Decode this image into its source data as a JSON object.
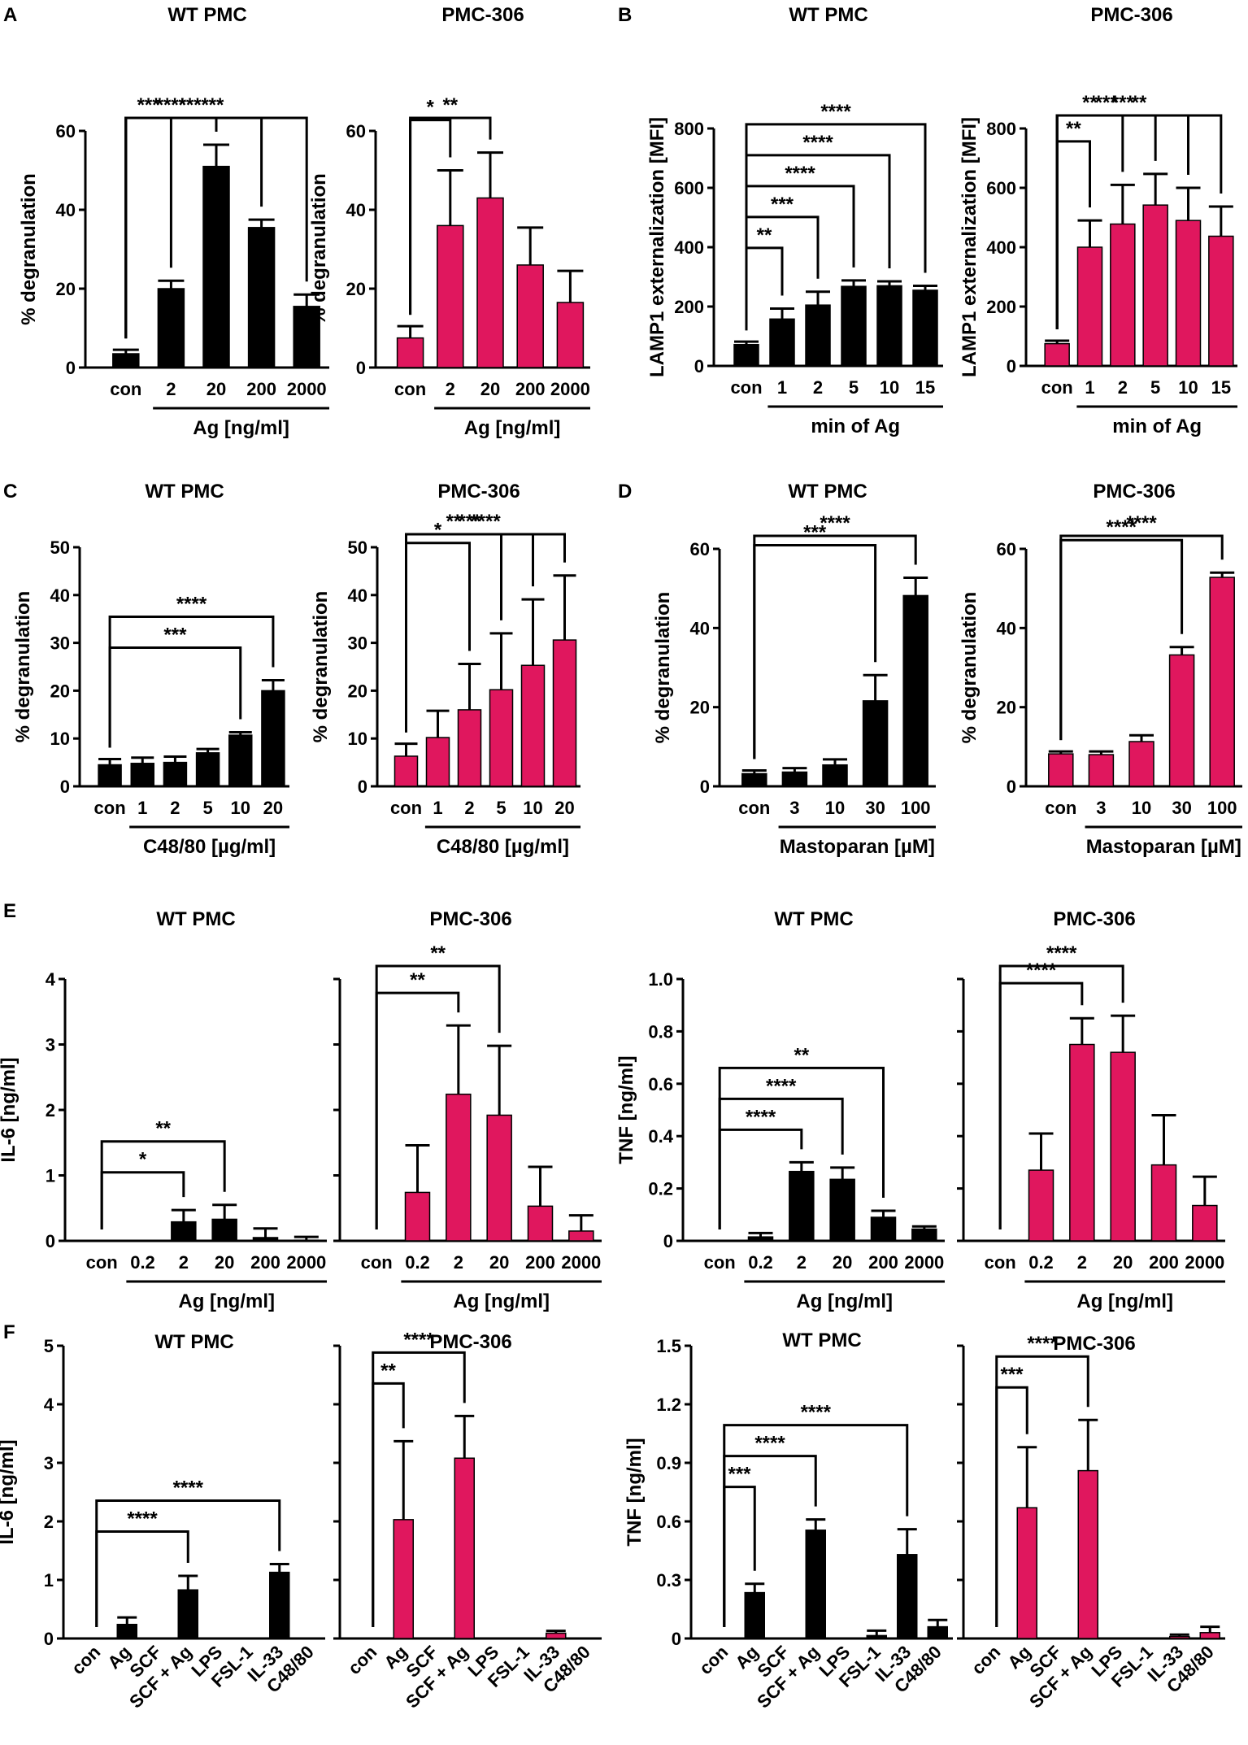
{
  "colors": {
    "wt": "#000000",
    "pmc306": "#e0175e",
    "axis": "#000000"
  },
  "chart_data": [
    {
      "id": "A1",
      "type": "bar",
      "panel_label": "A",
      "title": "WT PMC",
      "ylabel": "% degranulation",
      "xlabel": "Ag [ng/ml]",
      "ylim": [
        0,
        60
      ],
      "yticks": [
        "0",
        "20",
        "40",
        "60"
      ],
      "categories": [
        "con",
        "2",
        "20",
        "200",
        "2000"
      ],
      "values": [
        3.5,
        20,
        51,
        35.5,
        15.5
      ],
      "errors": [
        1,
        2,
        5.5,
        2,
        3
      ],
      "color": "wt",
      "sig": [
        {
          "label": "***",
          "to": 1
        },
        {
          "label": "****",
          "to": 2
        },
        {
          "label": "****",
          "to": 3
        },
        {
          "label": "**",
          "to": 4
        }
      ]
    },
    {
      "id": "A2",
      "type": "bar",
      "title": "PMC-306",
      "ylabel": "% degranulation",
      "xlabel": "Ag [ng/ml]",
      "ylim": [
        0,
        60
      ],
      "yticks": [
        "0",
        "20",
        "40",
        "60"
      ],
      "categories": [
        "con",
        "2",
        "20",
        "200",
        "2000"
      ],
      "values": [
        7.5,
        36,
        43,
        26,
        16.5
      ],
      "errors": [
        3,
        14,
        11.5,
        9.5,
        8
      ],
      "color": "pmc306",
      "sig": [
        {
          "label": "*",
          "to": 1
        },
        {
          "label": "**",
          "to": 2
        }
      ]
    },
    {
      "id": "B1",
      "type": "bar",
      "panel_label": "B",
      "title": "WT PMC",
      "ylabel": "LAMP1 externalization [MFI]",
      "xlabel": "min of Ag",
      "ylim": [
        0,
        800
      ],
      "yticks": [
        "0",
        "200",
        "400",
        "600",
        "800"
      ],
      "categories": [
        "con",
        "1",
        "2",
        "5",
        "10",
        "15"
      ],
      "values": [
        72,
        158,
        205,
        268,
        270,
        255
      ],
      "errors": [
        10,
        35,
        45,
        20,
        15,
        15
      ],
      "color": "wt",
      "sig": [
        {
          "label": "**",
          "to": 1
        },
        {
          "label": "***",
          "to": 2
        },
        {
          "label": "****",
          "to": 3
        },
        {
          "label": "****",
          "to": 4
        },
        {
          "label": "****",
          "to": 5
        }
      ]
    },
    {
      "id": "B2",
      "type": "bar",
      "title": "PMC-306",
      "ylabel": "LAMP1 externalization [MFI]",
      "xlabel": "min of Ag",
      "ylim": [
        0,
        800
      ],
      "yticks": [
        "0",
        "200",
        "400",
        "600",
        "800"
      ],
      "categories": [
        "con",
        "1",
        "2",
        "5",
        "10",
        "15"
      ],
      "values": [
        75,
        400,
        478,
        542,
        490,
        437
      ],
      "errors": [
        10,
        90,
        132,
        105,
        110,
        100
      ],
      "color": "pmc306",
      "sig": [
        {
          "label": "**",
          "to": 1
        },
        {
          "label": "**",
          "to": 2
        },
        {
          "label": "***",
          "to": 3
        },
        {
          "label": "***",
          "to": 4
        },
        {
          "label": "**",
          "to": 5
        }
      ]
    },
    {
      "id": "C1",
      "type": "bar",
      "panel_label": "C",
      "title": "WT PMC",
      "ylabel": "% degranulation",
      "xlabel": "C48/80 [µg/ml]",
      "ylim": [
        0,
        50
      ],
      "yticks": [
        "0",
        "10",
        "20",
        "30",
        "40",
        "50"
      ],
      "categories": [
        "con",
        "1",
        "2",
        "5",
        "10",
        "20"
      ],
      "values": [
        4.5,
        4.8,
        5,
        7,
        10.7,
        20
      ],
      "errors": [
        1.2,
        1.2,
        1.2,
        0.8,
        0.6,
        2.2
      ],
      "color": "wt",
      "sig": [
        {
          "label": "***",
          "to": 4
        },
        {
          "label": "****",
          "to": 5
        }
      ]
    },
    {
      "id": "C2",
      "type": "bar",
      "title": "PMC-306",
      "ylabel": "% degranulation",
      "xlabel": "C48/80 [µg/ml]",
      "ylim": [
        0,
        50
      ],
      "yticks": [
        "0",
        "10",
        "20",
        "30",
        "40",
        "50"
      ],
      "categories": [
        "con",
        "1",
        "2",
        "5",
        "10",
        "20"
      ],
      "values": [
        6.3,
        10.2,
        16,
        20.2,
        25.3,
        30.6
      ],
      "errors": [
        2.6,
        5.6,
        9.6,
        11.8,
        13.8,
        13.5
      ],
      "color": "pmc306",
      "sig": [
        {
          "label": "*",
          "to": 2
        },
        {
          "label": "**",
          "to": 3
        },
        {
          "label": "***",
          "to": 4
        },
        {
          "label": "****",
          "to": 5
        }
      ]
    },
    {
      "id": "D1",
      "type": "bar",
      "panel_label": "D",
      "title": "WT PMC",
      "ylabel": "% degranulation",
      "xlabel": "Mastoparan [µM]",
      "ylim": [
        0,
        60
      ],
      "yticks": [
        "0",
        "20",
        "40",
        "60"
      ],
      "categories": [
        "con",
        "3",
        "10",
        "30",
        "100"
      ],
      "values": [
        3.2,
        3.6,
        5.4,
        21.6,
        48.2
      ],
      "errors": [
        0.8,
        1,
        1.4,
        6.5,
        4.5
      ],
      "color": "wt",
      "sig": [
        {
          "label": "***",
          "to": 3
        },
        {
          "label": "****",
          "to": 4
        }
      ]
    },
    {
      "id": "D2",
      "type": "bar",
      "title": "PMC-306",
      "ylabel": "% degranulation",
      "xlabel": "Mastoparan [µM]",
      "ylim": [
        0,
        60
      ],
      "yticks": [
        "0",
        "20",
        "40",
        "60"
      ],
      "categories": [
        "con",
        "3",
        "10",
        "30",
        "100"
      ],
      "values": [
        8.2,
        8,
        11.3,
        33.2,
        52.8
      ],
      "errors": [
        0.6,
        0.8,
        1.6,
        2,
        1.2
      ],
      "color": "pmc306",
      "sig": [
        {
          "label": "****",
          "to": 3
        },
        {
          "label": "****",
          "to": 4
        }
      ]
    },
    {
      "id": "E1",
      "type": "bar",
      "panel_label": "E",
      "title": "WT PMC",
      "ylabel": "IL-6 [ng/ml]",
      "xlabel": "Ag [ng/ml]",
      "ylim": [
        0,
        4
      ],
      "yticks": [
        "0",
        "1",
        "2",
        "3",
        "4"
      ],
      "categories": [
        "con",
        "0.2",
        "2",
        "20",
        "200",
        "2000"
      ],
      "values": [
        0,
        0,
        0.29,
        0.33,
        0.05,
        0.01
      ],
      "errors": [
        0,
        0,
        0.18,
        0.22,
        0.14,
        0.05
      ],
      "color": "wt",
      "sig": [
        {
          "label": "*",
          "to": 2
        },
        {
          "label": "**",
          "to": 3
        }
      ]
    },
    {
      "id": "E2",
      "type": "bar",
      "title": "PMC-306",
      "ylabel": "",
      "xlabel": "Ag [ng/ml]",
      "ylim": [
        0,
        4
      ],
      "yticks": [
        "",
        "",
        "",
        "",
        ""
      ],
      "categories": [
        "con",
        "0.2",
        "2",
        "20",
        "200",
        "2000"
      ],
      "values": [
        0,
        0.74,
        2.24,
        1.92,
        0.53,
        0.15
      ],
      "errors": [
        0,
        0.72,
        1.05,
        1.06,
        0.6,
        0.24
      ],
      "color": "pmc306",
      "sig": [
        {
          "label": "**",
          "to": 2
        },
        {
          "label": "**",
          "to": 3
        }
      ]
    },
    {
      "id": "E3",
      "type": "bar",
      "title": "WT PMC",
      "ylabel": "TNF [ng/ml]",
      "xlabel": "Ag [ng/ml]",
      "ylim": [
        0,
        1
      ],
      "yticks": [
        "0",
        "0.2",
        "0.4",
        "0.6",
        "0.8",
        "1.0"
      ],
      "categories": [
        "con",
        "0.2",
        "2",
        "20",
        "200",
        "2000"
      ],
      "values": [
        0,
        0.015,
        0.265,
        0.235,
        0.09,
        0.045
      ],
      "errors": [
        0,
        0.015,
        0.035,
        0.045,
        0.025,
        0.01
      ],
      "color": "wt",
      "sig": [
        {
          "label": "****",
          "to": 2
        },
        {
          "label": "****",
          "to": 3
        },
        {
          "label": "**",
          "to": 4
        }
      ]
    },
    {
      "id": "E4",
      "type": "bar",
      "title": "PMC-306",
      "ylabel": "",
      "xlabel": "Ag [ng/ml]",
      "ylim": [
        0,
        1
      ],
      "yticks": [
        "",
        "",
        "",
        "",
        "",
        ""
      ],
      "categories": [
        "con",
        "0.2",
        "2",
        "20",
        "200",
        "2000"
      ],
      "values": [
        0,
        0.27,
        0.75,
        0.72,
        0.29,
        0.135
      ],
      "errors": [
        0,
        0.14,
        0.1,
        0.14,
        0.19,
        0.11
      ],
      "color": "pmc306",
      "sig": [
        {
          "label": "****",
          "to": 2
        },
        {
          "label": "****",
          "to": 3
        }
      ]
    },
    {
      "id": "F1",
      "type": "bar",
      "panel_label": "F",
      "title": "WT PMC",
      "ylabel": "IL-6 [ng/ml]",
      "xlabel": "",
      "ylim": [
        0,
        5
      ],
      "yticks": [
        "0",
        "1",
        "2",
        "3",
        "4",
        "5"
      ],
      "categories": [
        "con",
        "Ag",
        "SCF",
        "SCF + Ag",
        "LPS",
        "FSL-1",
        "IL-33",
        "C48/80"
      ],
      "values": [
        0,
        0.24,
        0,
        0.83,
        0,
        0.01,
        1.13,
        0
      ],
      "errors": [
        0,
        0.12,
        0,
        0.24,
        0,
        0,
        0.14,
        0
      ],
      "color": "wt",
      "sig": [
        {
          "label": "****",
          "to": 3
        },
        {
          "label": "****",
          "to": 6
        }
      ]
    },
    {
      "id": "F2",
      "type": "bar",
      "title": "PMC-306",
      "ylabel": "",
      "xlabel": "",
      "ylim": [
        0,
        5
      ],
      "yticks": [
        "",
        "",
        "",
        "",
        "",
        ""
      ],
      "categories": [
        "con",
        "Ag",
        "SCF",
        "SCF + Ag",
        "LPS",
        "FSL-1",
        "IL-33",
        "C48/80"
      ],
      "values": [
        0,
        2.03,
        0,
        3.08,
        0,
        0,
        0.09,
        0
      ],
      "errors": [
        0,
        1.34,
        0,
        0.72,
        0,
        0,
        0.04,
        0
      ],
      "color": "pmc306",
      "sig": [
        {
          "label": "**",
          "to": 1
        },
        {
          "label": "****",
          "to": 3
        }
      ]
    },
    {
      "id": "F3",
      "type": "bar",
      "title": "WT PMC",
      "ylabel": "TNF [ng/ml]",
      "xlabel": "",
      "ylim": [
        0,
        1.5
      ],
      "yticks": [
        "0",
        "0.3",
        "0.6",
        "0.9",
        "1.2",
        "1.5"
      ],
      "categories": [
        "con",
        "Ag",
        "SCF",
        "SCF + Ag",
        "LPS",
        "FSL-1",
        "IL-33",
        "C48/80"
      ],
      "values": [
        0,
        0.235,
        0,
        0.555,
        0,
        0.015,
        0.43,
        0.06
      ],
      "errors": [
        0,
        0.045,
        0,
        0.055,
        0,
        0.025,
        0.13,
        0.035
      ],
      "color": "wt",
      "sig": [
        {
          "label": "***",
          "to": 1
        },
        {
          "label": "****",
          "to": 3
        },
        {
          "label": "****",
          "to": 6
        }
      ]
    },
    {
      "id": "F4",
      "type": "bar",
      "title": "PMC-306",
      "ylabel": "",
      "xlabel": "",
      "ylim": [
        0,
        1.5
      ],
      "yticks": [
        "",
        "",
        "",
        "",
        "",
        ""
      ],
      "categories": [
        "con",
        "Ag",
        "SCF",
        "SCF + Ag",
        "LPS",
        "FSL-1",
        "IL-33",
        "C48/80"
      ],
      "values": [
        0,
        0.67,
        0,
        0.86,
        0,
        0,
        0.01,
        0.03
      ],
      "errors": [
        0,
        0.31,
        0,
        0.26,
        0,
        0,
        0.01,
        0.03
      ],
      "color": "pmc306",
      "sig": [
        {
          "label": "***",
          "to": 1
        },
        {
          "label": "****",
          "to": 3
        }
      ]
    }
  ]
}
